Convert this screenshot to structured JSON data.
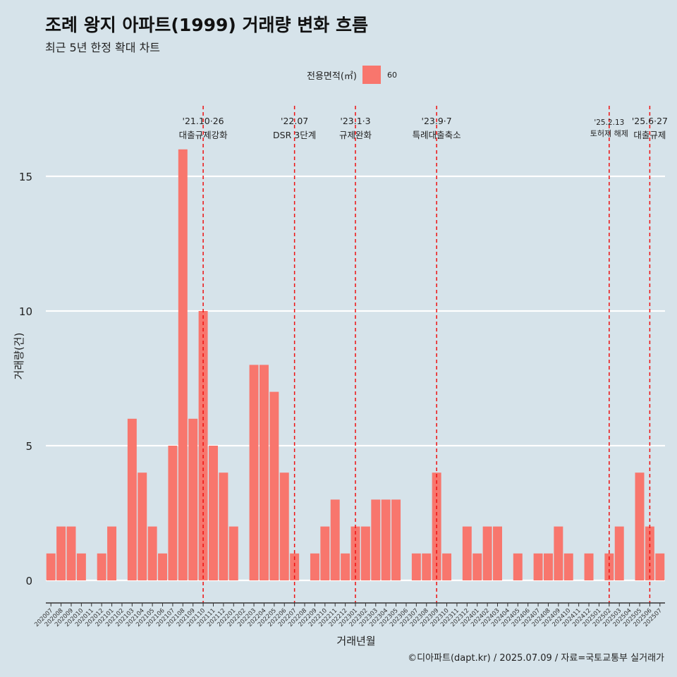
{
  "title": "조례 왕지 아파트(1999) 거래량 변화 흐름",
  "subtitle": "최근 5년 한정 확대 차트",
  "legend": {
    "title": "전용면적(㎡)",
    "item": "60",
    "color": "#f8766d"
  },
  "caption": "©디아파트(dapt.kr) / 2025.07.09 / 자료=국토교통부 실거래가",
  "chart_data": {
    "type": "bar",
    "xlabel": "거래년월",
    "ylabel": "거래량(건)",
    "ylim": [
      0,
      17
    ],
    "yticks": [
      0,
      5,
      10,
      15
    ],
    "grid": "horizontal",
    "legend_position": "top",
    "bar_color": "#f8766d",
    "categories": [
      "202007",
      "202008",
      "202009",
      "202010",
      "202011",
      "202012",
      "202101",
      "202102",
      "202103",
      "202104",
      "202105",
      "202106",
      "202107",
      "202108",
      "202109",
      "202110",
      "202111",
      "202112",
      "202201",
      "202202",
      "202203",
      "202204",
      "202205",
      "202206",
      "202207",
      "202208",
      "202209",
      "202210",
      "202211",
      "202212",
      "202301",
      "202302",
      "202303",
      "202304",
      "202305",
      "202306",
      "202307",
      "202308",
      "202309",
      "202310",
      "202311",
      "202312",
      "202401",
      "202402",
      "202403",
      "202404",
      "202405",
      "202406",
      "202407",
      "202408",
      "202409",
      "202410",
      "202411",
      "202412",
      "202501",
      "202502",
      "202503",
      "202504",
      "202505",
      "202506",
      "202507"
    ],
    "series": [
      {
        "name": "60",
        "values": [
          1,
          2,
          2,
          1,
          0,
          1,
          2,
          0,
          6,
          4,
          2,
          1,
          5,
          16,
          6,
          10,
          5,
          4,
          2,
          0,
          8,
          8,
          7,
          4,
          1,
          0,
          1,
          2,
          3,
          1,
          2,
          2,
          3,
          3,
          3,
          0,
          1,
          1,
          4,
          1,
          0,
          2,
          1,
          2,
          2,
          0,
          1,
          0,
          1,
          1,
          2,
          1,
          0,
          1,
          0,
          1,
          2,
          0,
          4,
          2,
          1
        ]
      }
    ],
    "annotations": [
      {
        "category": "202110",
        "label_top": "'21.10·26",
        "label_bottom": "대출규제강화",
        "size": "normal"
      },
      {
        "category": "202207",
        "label_top": "'22.07",
        "label_bottom": "DSR 3단계",
        "size": "normal"
      },
      {
        "category": "202301",
        "label_top": "'23.1·3",
        "label_bottom": "규제완화",
        "size": "normal"
      },
      {
        "category": "202309",
        "label_top": "'23.9·7",
        "label_bottom": "특례대출축소",
        "size": "normal"
      },
      {
        "category": "202502",
        "label_top": "'25.2.13",
        "label_bottom": "토허제 해제",
        "size": "small"
      },
      {
        "category": "202506",
        "label_top": "'25.6·27",
        "label_bottom": "대출규제",
        "size": "normal"
      }
    ]
  }
}
